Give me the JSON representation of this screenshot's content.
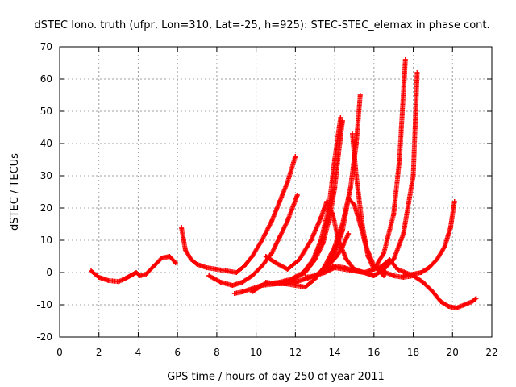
{
  "chart_data": {
    "type": "scatter",
    "title": "dSTEC Iono. truth (ufpr, Lon=310, Lat=-25, h=925): STEC-STEC_elemax in phase cont.",
    "xlabel": "GPS time / hours of day 250 of year 2011",
    "ylabel": "dSTEC  / TECUs",
    "xlim": [
      0,
      22
    ],
    "ylim": [
      -20,
      70
    ],
    "xticks": [
      0,
      2,
      4,
      6,
      8,
      10,
      12,
      14,
      16,
      18,
      20,
      22
    ],
    "yticks": [
      -20,
      -10,
      0,
      10,
      20,
      30,
      40,
      50,
      60,
      70
    ],
    "grid": true,
    "marker": "plus",
    "color": "#ff0000",
    "series": [
      {
        "x": [
          1.6,
          2.0,
          2.5,
          3.0,
          3.3,
          3.6,
          3.9,
          4.1,
          4.4,
          4.8,
          5.2,
          5.6,
          5.9
        ],
        "y": [
          0.5,
          -1.5,
          -2.5,
          -2.8,
          -2.0,
          -1.0,
          0.0,
          -1.0,
          -0.5,
          2.0,
          4.5,
          5.0,
          3.0
        ]
      },
      {
        "x": [
          6.2,
          6.4,
          6.7,
          7.0,
          7.5,
          8.0,
          8.5,
          9.0,
          9.4,
          9.8,
          10.3,
          10.8,
          11.2,
          11.6,
          12.0
        ],
        "y": [
          14.0,
          7.0,
          4.0,
          2.5,
          1.5,
          1.0,
          0.5,
          0.0,
          2.0,
          5.0,
          10.0,
          16.0,
          22.0,
          28.0,
          36.0
        ]
      },
      {
        "x": [
          7.6,
          8.2,
          8.8,
          9.3,
          9.8,
          10.3,
          10.8,
          11.2,
          11.6,
          12.1
        ],
        "y": [
          -1.0,
          -3.0,
          -4.0,
          -3.0,
          -1.0,
          2.0,
          6.0,
          11.0,
          16.0,
          24.0
        ]
      },
      {
        "x": [
          8.9,
          9.3,
          9.8,
          10.5,
          11.2,
          11.8,
          12.4,
          12.9,
          13.3,
          13.7,
          14.0,
          14.3
        ],
        "y": [
          -6.5,
          -6.0,
          -5.0,
          -3.5,
          -3.0,
          -2.0,
          0.0,
          4.0,
          10.0,
          20.0,
          35.0,
          48.0
        ]
      },
      {
        "x": [
          9.8,
          10.3,
          11.0,
          11.8,
          12.5,
          13.0,
          13.4,
          13.7,
          14.0,
          14.2,
          14.4
        ],
        "y": [
          -6.0,
          -4.0,
          -3.5,
          -2.5,
          0.0,
          4.0,
          9.0,
          16.0,
          26.0,
          37.0,
          47.0
        ]
      },
      {
        "x": [
          10.5,
          11.0,
          11.5,
          12.0,
          12.5,
          13.0,
          13.5,
          13.8,
          14.1,
          14.4,
          14.7
        ],
        "y": [
          -3.0,
          -3.5,
          -3.5,
          -3.0,
          -2.0,
          -1.0,
          1.0,
          3.0,
          5.0,
          8.0,
          12.0
        ]
      },
      {
        "x": [
          10.8,
          11.5,
          12.0,
          12.5,
          13.0,
          13.5,
          14.0,
          14.4,
          14.8,
          15.1,
          15.3
        ],
        "y": [
          -3.5,
          -3.5,
          -4.0,
          -4.5,
          -2.0,
          2.0,
          8.0,
          15.0,
          26.0,
          40.0,
          55.0
        ]
      },
      {
        "x": [
          10.5,
          11.0,
          11.6,
          12.2,
          12.8,
          13.3,
          13.6,
          13.9,
          14.2,
          14.6,
          15.0,
          15.5,
          16.0
        ],
        "y": [
          5.0,
          3.0,
          1.0,
          4.0,
          10.0,
          17.0,
          22.0,
          18.0,
          10.0,
          4.0,
          1.0,
          0.0,
          -1.0
        ]
      },
      {
        "x": [
          12.5,
          13.0,
          13.5,
          14.0,
          14.5,
          15.0,
          15.5,
          16.0,
          16.5,
          17.0,
          17.3,
          17.6
        ],
        "y": [
          -1.5,
          -1.0,
          0.0,
          1.5,
          1.0,
          0.5,
          0.0,
          1.0,
          6.0,
          18.0,
          35.0,
          66.0
        ]
      },
      {
        "x": [
          13.0,
          13.5,
          14.0,
          14.5,
          15.0,
          15.5,
          16.0,
          16.5,
          17.0,
          17.5,
          18.0,
          18.2
        ],
        "y": [
          -1.0,
          1.0,
          2.0,
          1.5,
          0.5,
          0.0,
          -1.0,
          1.0,
          4.0,
          12.0,
          30.0,
          62.0
        ]
      },
      {
        "x": [
          13.6,
          14.0,
          14.4,
          14.7,
          15.0,
          15.3,
          15.6,
          16.0,
          16.5
        ],
        "y": [
          2.0,
          6.0,
          13.0,
          23.0,
          21.0,
          15.0,
          8.0,
          2.0,
          -1.0
        ]
      },
      {
        "x": [
          14.9,
          15.1,
          15.4,
          15.7,
          16.0,
          16.4,
          16.8,
          17.2,
          17.6,
          18.0
        ],
        "y": [
          43.0,
          30.0,
          15.0,
          5.0,
          1.0,
          2.0,
          4.0,
          1.0,
          0.0,
          -1.0
        ]
      },
      {
        "x": [
          16.2,
          16.6,
          17.0,
          17.5,
          18.0,
          18.5,
          19.0,
          19.4,
          19.8,
          20.2,
          20.6,
          21.0,
          21.2
        ],
        "y": [
          1.0,
          0.0,
          -1.0,
          -1.5,
          -1.0,
          -3.0,
          -6.0,
          -9.0,
          -10.5,
          -11.0,
          -10.0,
          -9.0,
          -8.0
        ]
      },
      {
        "x": [
          17.5,
          18.0,
          18.4,
          18.8,
          19.2,
          19.6,
          19.9,
          20.1
        ],
        "y": [
          -1.0,
          -0.5,
          0.0,
          1.5,
          4.0,
          8.0,
          14.0,
          22.0
        ]
      }
    ]
  }
}
